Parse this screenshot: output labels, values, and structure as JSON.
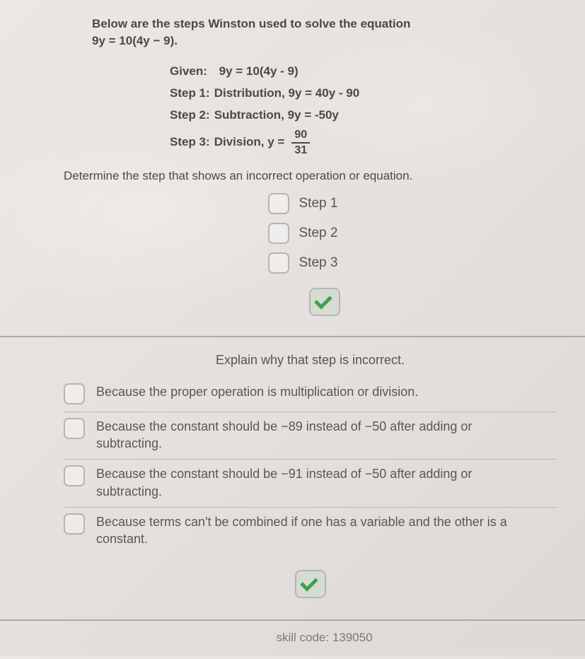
{
  "colors": {
    "text_main": "#494949",
    "text_muted": "#555555",
    "checkbox_border": "#b8b4b0",
    "check_green": "#3fa04a",
    "check_bg": "#d6dbd4",
    "divider": "#aaaaaa"
  },
  "problem": {
    "intro": "Below are the steps Winston used to solve the equation",
    "equation": "9y = 10(4y − 9)."
  },
  "steps": {
    "given_label": "Given:",
    "given_eq": "9y = 10(4y - 9)",
    "s1_label": "Step 1:",
    "s1_text": "Distribution, 9y = 40y - 90",
    "s2_label": "Step 2:",
    "s2_text": "Subtraction, 9y = -50y",
    "s3_label": "Step 3:",
    "s3_prefix": "Division, y =",
    "s3_num": "90",
    "s3_den": "31"
  },
  "question1": "Determine the step that shows an incorrect operation or equation.",
  "q1_choices": {
    "a": "Step 1",
    "b": "Step 2",
    "c": "Step 3"
  },
  "question2": "Explain why that step is incorrect.",
  "q2_choices": {
    "a": "Because the proper operation is multiplication or division.",
    "b": "Because the constant should be −89 instead of −50 after adding or subtracting.",
    "c": "Because the constant should be −91 instead of −50 after adding or subtracting.",
    "d": "Because terms can't be combined if one has a variable and the other is a constant."
  },
  "footer": {
    "skill_label": "skill code:",
    "skill_code": "139050"
  }
}
